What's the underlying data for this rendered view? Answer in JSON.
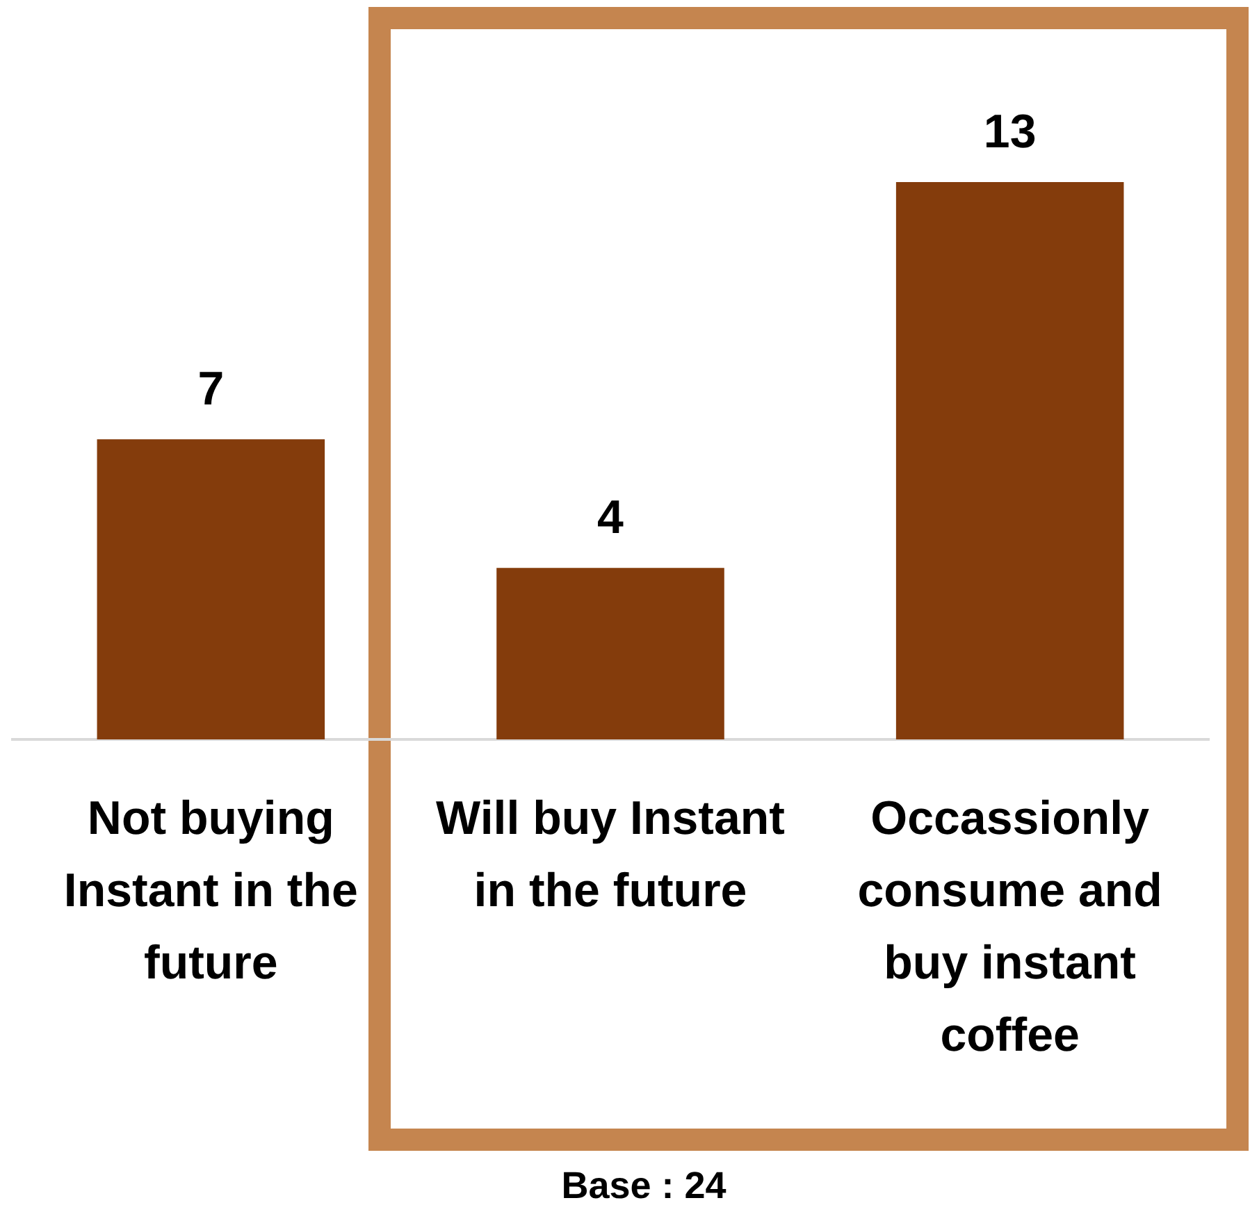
{
  "chart_data": {
    "type": "bar",
    "categories": [
      "Not buying Instant in the future",
      "Will buy Instant in the future",
      "Occassionly consume and buy instant coffee"
    ],
    "values": [
      7,
      4,
      13
    ],
    "color": "#843c0c",
    "data_labels": true,
    "annotations": [
      "Base : 24"
    ]
  }
}
